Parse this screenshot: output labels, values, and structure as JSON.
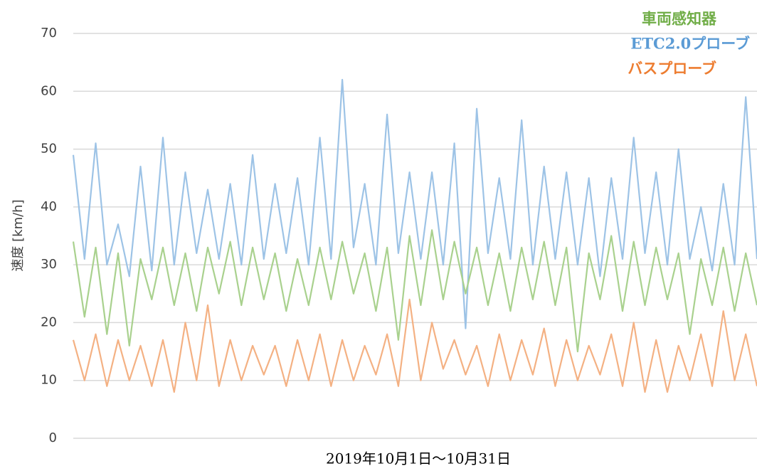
{
  "chart_data": {
    "type": "line",
    "x_label": "2019年10月1日～10月31日",
    "y_label": "速度 [km/h]",
    "categories": [
      null,
      null,
      null,
      null,
      null,
      null,
      null,
      null,
      null,
      null,
      null,
      null,
      null,
      null,
      null,
      null,
      null,
      null,
      null,
      null,
      null,
      null,
      null,
      null,
      null,
      null,
      null,
      null,
      null,
      null,
      null,
      null,
      null,
      null,
      null,
      null,
      null,
      null,
      null,
      null,
      null,
      null,
      null,
      null,
      null,
      null,
      null,
      null,
      null,
      null,
      null,
      null,
      null,
      null,
      null,
      null,
      null,
      null,
      null,
      null,
      null,
      null
    ],
    "series": [
      {
        "name": "車両感知器",
        "color": "#a9d18e",
        "label_color": "#70ad47",
        "values": [
          34,
          21,
          33,
          18,
          32,
          16,
          31,
          24,
          33,
          23,
          32,
          22,
          33,
          25,
          34,
          23,
          33,
          24,
          32,
          22,
          31,
          23,
          33,
          24,
          34,
          25,
          32,
          22,
          33,
          17,
          35,
          23,
          36,
          24,
          34,
          25,
          33,
          23,
          32,
          22,
          33,
          24,
          34,
          23,
          33,
          15,
          32,
          24,
          35,
          22,
          34,
          23,
          33,
          24,
          32,
          18,
          31,
          23,
          33,
          22,
          32,
          23
        ]
      },
      {
        "name": "ETC2.0プローブ",
        "color": "#9dc3e6",
        "label_color": "#5b9bd5",
        "values": [
          49,
          31,
          51,
          30,
          37,
          28,
          47,
          29,
          52,
          30,
          46,
          32,
          43,
          31,
          44,
          30,
          49,
          31,
          44,
          32,
          45,
          30,
          52,
          31,
          62,
          33,
          44,
          30,
          56,
          32,
          46,
          31,
          46,
          30,
          51,
          19,
          57,
          32,
          45,
          31,
          55,
          30,
          47,
          31,
          46,
          30,
          45,
          28,
          45,
          31,
          52,
          32,
          46,
          30,
          50,
          31,
          40,
          29,
          44,
          30,
          59,
          31
        ]
      },
      {
        "name": "バスプローブ",
        "color": "#f4b183",
        "label_color": "#ed7d31",
        "values": [
          17,
          10,
          18,
          9,
          17,
          10,
          16,
          9,
          17,
          8,
          20,
          10,
          23,
          9,
          17,
          10,
          16,
          11,
          16,
          9,
          17,
          10,
          18,
          9,
          17,
          10,
          16,
          11,
          18,
          9,
          24,
          10,
          20,
          12,
          17,
          11,
          16,
          9,
          18,
          10,
          17,
          11,
          19,
          9,
          17,
          10,
          16,
          11,
          18,
          9,
          20,
          8,
          17,
          8,
          16,
          10,
          18,
          9,
          22,
          10,
          18,
          9
        ]
      }
    ],
    "draw_order": [
      1,
      0,
      2
    ],
    "ylim": [
      0,
      70
    ],
    "yticks": [
      0,
      10,
      20,
      30,
      40,
      50,
      60,
      70
    ],
    "grid": true,
    "legend": "upper right"
  }
}
